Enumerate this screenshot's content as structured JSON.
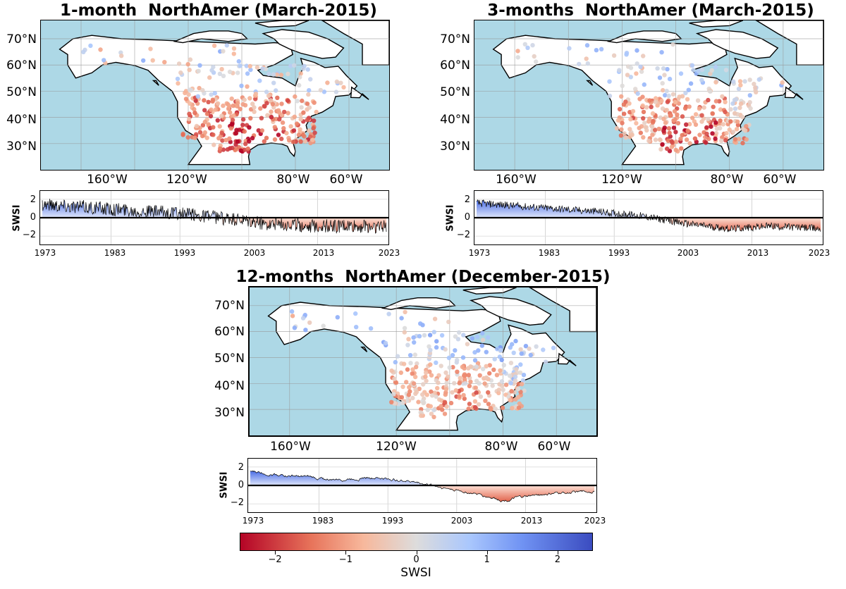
{
  "colorbar": {
    "label": "SWSI",
    "range": [
      -2.5,
      2.5
    ],
    "ticks": [
      {
        "value": -2,
        "label": "−2"
      },
      {
        "value": -1,
        "label": "−1"
      },
      {
        "value": 0,
        "label": "0"
      },
      {
        "value": 1,
        "label": "1"
      },
      {
        "value": 2,
        "label": "2"
      }
    ],
    "colors": [
      "#b40426",
      "#e7735a",
      "#f7b89c",
      "#dddcdc",
      "#aac7fd",
      "#7093f3",
      "#3b4cc0"
    ]
  },
  "chart_data": [
    {
      "type": "scatter",
      "title": "1-month  NorthAmer (March-2015)",
      "lat_ticks": [
        "70°N",
        "60°N",
        "50°N",
        "40°N",
        "30°N"
      ],
      "lon_ticks": [
        "160°W",
        "120°W",
        "80°W",
        "60°W"
      ],
      "map_extent": {
        "lon": [
          -175,
          -45
        ],
        "lat": [
          20,
          77
        ]
      },
      "ocean_color": "#add8e6",
      "land_color": "#ffffff",
      "dry_bias": 0.85
    },
    {
      "type": "area",
      "ylabel": "SWSI",
      "xlim": [
        1973,
        2023
      ],
      "ylim": [
        -2.9,
        2.9
      ],
      "yticks": [
        "2",
        "0",
        "−2"
      ],
      "xticks": [
        "1973",
        "1983",
        "1993",
        "2003",
        "2013",
        "2023"
      ],
      "trend": [
        [
          1973,
          1.5
        ],
        [
          1980,
          1.1
        ],
        [
          1990,
          0.6
        ],
        [
          1997,
          0.2
        ],
        [
          2003,
          -0.5
        ],
        [
          2013,
          -0.9
        ],
        [
          2023,
          -1.0
        ]
      ],
      "noise": 0.75
    },
    {
      "type": "scatter",
      "title": "3-months  NorthAmer (March-2015)",
      "lat_ticks": [
        "70°N",
        "60°N",
        "50°N",
        "40°N",
        "30°N"
      ],
      "lon_ticks": [
        "160°W",
        "120°W",
        "80°W",
        "60°W"
      ],
      "map_extent": {
        "lon": [
          -175,
          -45
        ],
        "lat": [
          20,
          77
        ]
      },
      "ocean_color": "#add8e6",
      "land_color": "#ffffff",
      "dry_bias": 0.7
    },
    {
      "type": "area",
      "ylabel": "SWSI",
      "xlim": [
        1973,
        2023
      ],
      "ylim": [
        -2.9,
        2.9
      ],
      "yticks": [
        "2",
        "0",
        "−2"
      ],
      "xticks": [
        "1973",
        "1983",
        "1993",
        "2003",
        "2013",
        "2023"
      ],
      "trend": [
        [
          1973,
          1.6
        ],
        [
          1980,
          1.2
        ],
        [
          1990,
          0.7
        ],
        [
          1997,
          0.2
        ],
        [
          2003,
          -0.6
        ],
        [
          2010,
          -1.2
        ],
        [
          2016,
          -0.9
        ],
        [
          2023,
          -1.2
        ]
      ],
      "noise": 0.4
    },
    {
      "type": "scatter",
      "title": "12-months  NorthAmer (December-2015)",
      "lat_ticks": [
        "70°N",
        "60°N",
        "50°N",
        "40°N",
        "30°N"
      ],
      "lon_ticks": [
        "160°W",
        "120°W",
        "80°W",
        "60°W"
      ],
      "map_extent": {
        "lon": [
          -175,
          -45
        ],
        "lat": [
          20,
          77
        ]
      },
      "ocean_color": "#add8e6",
      "land_color": "#ffffff",
      "dry_bias": 0.45
    },
    {
      "type": "area",
      "ylabel": "SWSI",
      "xlim": [
        1973,
        2023
      ],
      "ylim": [
        -2.9,
        2.9
      ],
      "yticks": [
        "2",
        "0",
        "−2"
      ],
      "xticks": [
        "1973",
        "1983",
        "1993",
        "2003",
        "2013",
        "2023"
      ],
      "trend": [
        [
          1973,
          1.5
        ],
        [
          1978,
          1.1
        ],
        [
          1985,
          0.6
        ],
        [
          1990,
          0.9
        ],
        [
          1996,
          0.5
        ],
        [
          1999,
          0.1
        ],
        [
          2003,
          -0.5
        ],
        [
          2010,
          -1.6
        ],
        [
          2015,
          -1.0
        ],
        [
          2023,
          -0.6
        ]
      ],
      "noise": 0.15
    }
  ]
}
